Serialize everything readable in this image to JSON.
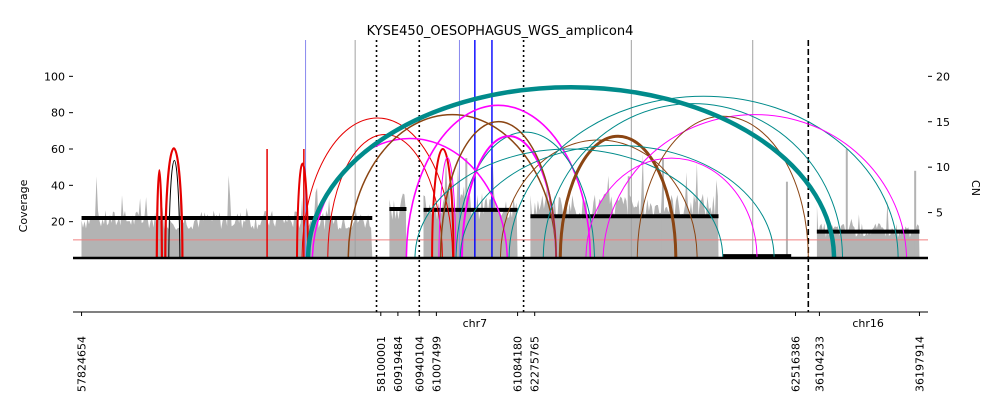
{
  "chart_data": {
    "type": "area",
    "title": "KYSE450_OESOPHAGUS_WGS_amplicon4",
    "ylabel": "Coverage",
    "y2label": "CN",
    "ylim": [
      0,
      120
    ],
    "y2lim": [
      0,
      24
    ],
    "yticks": [
      20,
      40,
      60,
      80,
      100
    ],
    "y2ticks": [
      5,
      10,
      15,
      20
    ],
    "grid": false,
    "legend": "none",
    "colors": {
      "coverage": "#b3b3b3",
      "cn_segment": "#000000",
      "reference_line": "#f08080",
      "deletion": "#e60000",
      "duplication": "#8b4513",
      "inversion": "#008b8b",
      "translocation": "#ff00ff",
      "breakpoint": "#0000ff"
    },
    "chromosomes": [
      {
        "name": "chr7",
        "x": 0.47
      },
      {
        "name": "chr16",
        "x": 0.93
      }
    ],
    "x_tick_labels": [
      "57824654",
      "58100001",
      "60919484",
      "60940104",
      "61007499",
      "61084180",
      "62275765",
      "62516386",
      "36104233",
      "36197914"
    ],
    "boundaries": [
      {
        "x": 0.355,
        "style": "dotted"
      },
      {
        "x": 0.405,
        "style": "dotted"
      },
      {
        "x": 0.527,
        "style": "dotted"
      },
      {
        "x": 0.86,
        "style": "dashed"
      }
    ],
    "segments": [
      {
        "x0": 0.01,
        "x1": 0.35,
        "cn": 4.4
      },
      {
        "x0": 0.37,
        "x1": 0.39,
        "cn": 5.4
      },
      {
        "x0": 0.41,
        "x1": 0.52,
        "cn": 5.3
      },
      {
        "x0": 0.535,
        "x1": 0.755,
        "cn": 4.6
      },
      {
        "x0": 0.76,
        "x1": 0.84,
        "cn": 0.2
      },
      {
        "x0": 0.87,
        "x1": 0.99,
        "cn": 2.9
      }
    ],
    "coverage_levels": [
      {
        "x0": 0.01,
        "x1": 0.35,
        "y": 22
      },
      {
        "x0": 0.37,
        "x1": 0.39,
        "y": 30
      },
      {
        "x0": 0.41,
        "x1": 0.52,
        "y": 30
      },
      {
        "x0": 0.535,
        "x1": 0.755,
        "y": 30
      },
      {
        "x0": 0.76,
        "x1": 0.84,
        "y": 1
      },
      {
        "x0": 0.87,
        "x1": 0.99,
        "y": 16
      }
    ],
    "coverage_spikes": [
      {
        "x": 0.46,
        "y": 55
      },
      {
        "x": 0.49,
        "y": 50
      },
      {
        "x": 0.69,
        "y": 55
      },
      {
        "x": 0.835,
        "y": 42
      },
      {
        "x": 0.905,
        "y": 60
      },
      {
        "x": 0.985,
        "y": 48
      },
      {
        "x": 0.47,
        "y": 48
      },
      {
        "x": 0.65,
        "y": 45
      }
    ],
    "reference_line_cn": 2,
    "breakpoint_lines": [
      {
        "x": 0.272,
        "color": "breakpoint_light",
        "width": 1
      },
      {
        "x": 0.33,
        "color": "gray",
        "width": 1
      },
      {
        "x": 0.452,
        "color": "breakpoint_light",
        "width": 1
      },
      {
        "x": 0.47,
        "color": "breakpoint",
        "width": 1.4
      },
      {
        "x": 0.49,
        "color": "breakpoint",
        "width": 1.4
      },
      {
        "x": 0.653,
        "color": "gray",
        "width": 1
      },
      {
        "x": 0.795,
        "color": "gray",
        "width": 1
      }
    ],
    "spikes": [
      {
        "x": 0.227,
        "y": 60
      },
      {
        "x": 0.27,
        "y": 60
      }
    ],
    "arcs": [
      {
        "x0": 0.098,
        "x1": 0.104,
        "h": 60,
        "color": "deletion",
        "width": 2.2
      },
      {
        "x0": 0.108,
        "x1": 0.128,
        "h": 60,
        "color": "deletion",
        "width": 2.2
      },
      {
        "x0": 0.112,
        "x1": 0.125,
        "h": 62,
        "color": "black",
        "width": 1
      },
      {
        "x0": 0.262,
        "x1": 0.275,
        "h": 60,
        "color": "deletion",
        "width": 2
      },
      {
        "x0": 0.268,
        "x1": 0.444,
        "h": 77,
        "color": "deletion",
        "width": 1
      },
      {
        "x0": 0.298,
        "x1": 0.432,
        "h": 68,
        "color": "deletion",
        "width": 1
      },
      {
        "x0": 0.28,
        "x1": 0.508,
        "h": 68,
        "color": "translocation",
        "width": 1.5
      },
      {
        "x0": 0.322,
        "x1": 0.565,
        "h": 79,
        "color": "duplication",
        "width": 1.5
      },
      {
        "x0": 0.42,
        "x1": 0.445,
        "h": 60,
        "color": "deletion",
        "width": 2
      },
      {
        "x0": 0.428,
        "x1": 0.448,
        "h": 62,
        "color": "translocation",
        "width": 1
      },
      {
        "x0": 0.5,
        "x1": 0.73,
        "h": 65,
        "color": "duplication",
        "width": 1
      },
      {
        "x0": 0.39,
        "x1": 0.605,
        "h": 84,
        "color": "translocation",
        "width": 1.6
      },
      {
        "x0": 0.448,
        "x1": 0.61,
        "h": 72,
        "color": "inversion",
        "width": 1
      },
      {
        "x0": 0.455,
        "x1": 0.565,
        "h": 67,
        "color": "translocation",
        "width": 2
      },
      {
        "x0": 0.43,
        "x1": 0.565,
        "h": 75,
        "color": "duplication",
        "width": 1.5
      },
      {
        "x0": 0.57,
        "x1": 0.705,
        "h": 67,
        "color": "duplication",
        "width": 3
      },
      {
        "x0": 0.4,
        "x1": 0.76,
        "h": 60,
        "color": "inversion",
        "width": 1
      },
      {
        "x0": 0.453,
        "x1": 0.82,
        "h": 62,
        "color": "inversion",
        "width": 1
      },
      {
        "x0": 0.51,
        "x1": 0.965,
        "h": 89,
        "color": "inversion",
        "width": 1
      },
      {
        "x0": 0.55,
        "x1": 0.9,
        "h": 85,
        "color": "inversion",
        "width": 1
      },
      {
        "x0": 0.6,
        "x1": 0.8,
        "h": 55,
        "color": "translocation",
        "width": 1
      },
      {
        "x0": 0.62,
        "x1": 0.975,
        "h": 81,
        "color": "translocation",
        "width": 1
      },
      {
        "x0": 0.66,
        "x1": 0.86,
        "h": 78,
        "color": "duplication",
        "width": 1
      },
      {
        "x0": 0.275,
        "x1": 0.89,
        "h": 94,
        "color": "inversion",
        "width": 4.5
      }
    ]
  }
}
